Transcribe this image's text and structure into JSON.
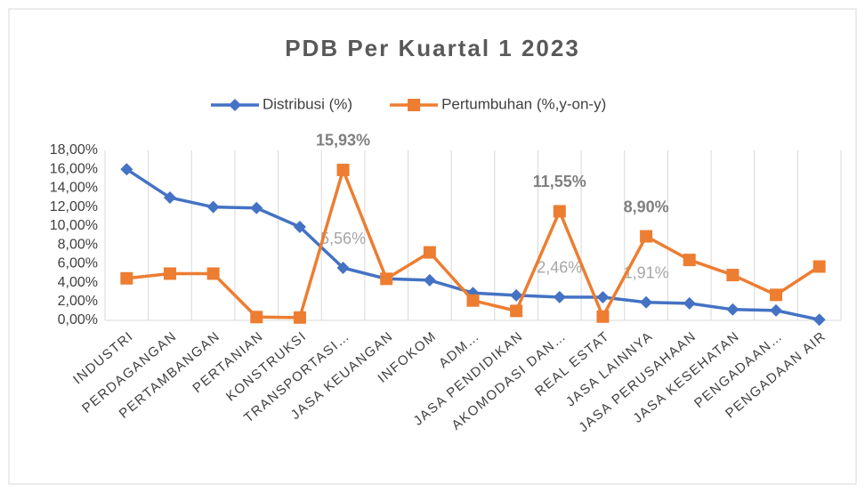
{
  "chart_data": {
    "type": "line",
    "title": "PDB Per Kuartal 1 2023",
    "categories": [
      "INDUSTRI",
      "PERDAGANGAN",
      "PERTAMBANGAN",
      "PERTANIAN",
      "KONSTRUKSI",
      "TRANSPORTASI…",
      "JASA KEUANGAN",
      "INFOKOM",
      "ADM…",
      "JASA PENDIDIKAN",
      "AKOMODASI DAN…",
      "REAL ESTAT",
      "JASA LAINNYA",
      "JASA PERUSAHAAN",
      "JASA KESEHATAN",
      "PENGADAAN…",
      "PENGADAAN AIR"
    ],
    "series": [
      {
        "name": "Distribusi (%)",
        "color": "#4472c4",
        "marker": "diamond",
        "values": [
          16.0,
          13.0,
          12.0,
          11.9,
          9.9,
          5.56,
          4.4,
          4.25,
          2.9,
          2.65,
          2.46,
          2.45,
          1.91,
          1.8,
          1.15,
          1.05,
          0.07
        ],
        "value_labels": [
          null,
          null,
          null,
          null,
          null,
          "5,56%",
          null,
          null,
          null,
          null,
          "2,46%",
          null,
          "1,91%",
          null,
          null,
          null,
          null
        ]
      },
      {
        "name": "Pertumbuhan (%,y-on-y)",
        "color": "#ed7d31",
        "marker": "square",
        "values": [
          4.45,
          4.95,
          4.95,
          0.35,
          0.3,
          15.93,
          4.4,
          7.2,
          2.1,
          1.0,
          11.55,
          0.4,
          8.9,
          6.4,
          4.8,
          2.7,
          5.7
        ],
        "value_labels": [
          null,
          null,
          null,
          null,
          null,
          "15,93%",
          null,
          null,
          null,
          null,
          "11,55%",
          null,
          "8,90%",
          null,
          null,
          null,
          null
        ]
      }
    ],
    "ylim": [
      0,
      18
    ],
    "yticks": [
      {
        "value": 0,
        "label": "0,00%"
      },
      {
        "value": 2,
        "label": "2,00%"
      },
      {
        "value": 4,
        "label": "4,00%"
      },
      {
        "value": 6,
        "label": "6,00%"
      },
      {
        "value": 8,
        "label": "8,00%"
      },
      {
        "value": 10,
        "label": "10,00%"
      },
      {
        "value": 12,
        "label": "12,00%"
      },
      {
        "value": 14,
        "label": "14,00%"
      },
      {
        "value": 16,
        "label": "16,00%"
      },
      {
        "value": 18,
        "label": "18,00%"
      }
    ],
    "grid": "vertical",
    "legend": "top"
  }
}
